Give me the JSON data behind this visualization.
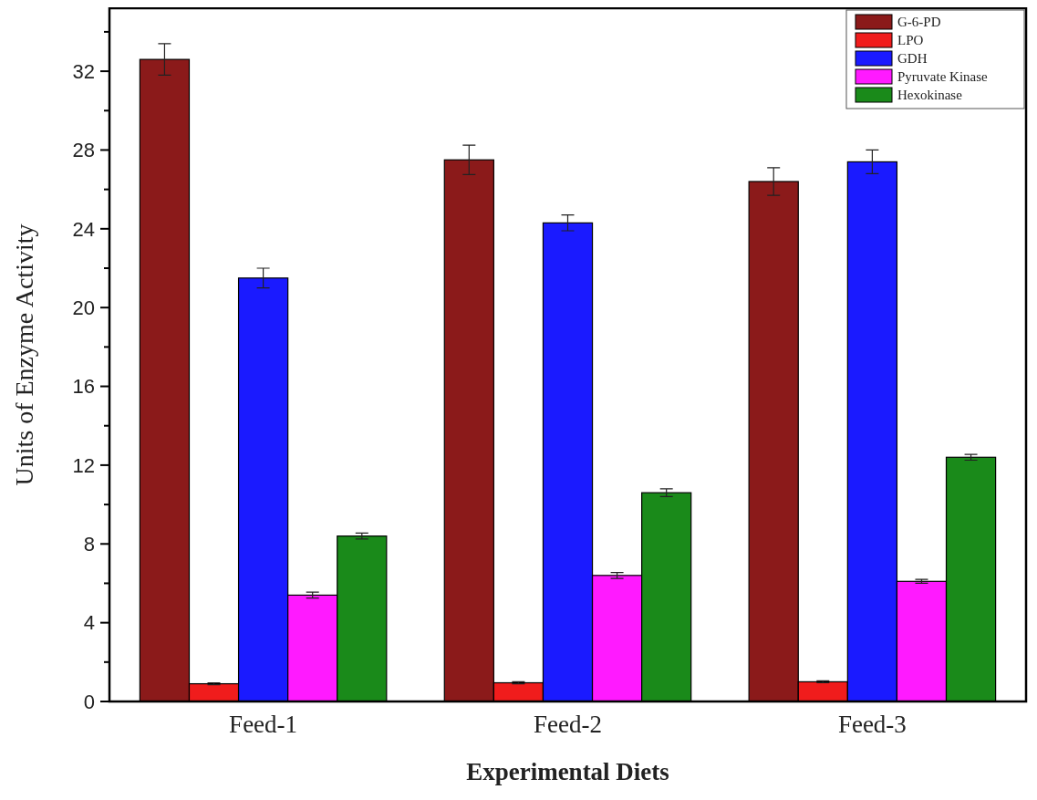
{
  "chart_data": {
    "type": "bar",
    "xlabel": "Experimental Diets",
    "ylabel": "Units of Enzyme Activity",
    "categories": [
      "Feed-1",
      "Feed-2",
      "Feed-3"
    ],
    "series": [
      {
        "name": "G-6-PD",
        "color": "#8b1a1a",
        "values": [
          32.6,
          27.5,
          26.4
        ],
        "errors": [
          0.8,
          0.75,
          0.7
        ]
      },
      {
        "name": "LPO",
        "color": "#f01c1c",
        "values": [
          0.9,
          0.95,
          1.0
        ],
        "errors": [
          0.05,
          0.05,
          0.05
        ]
      },
      {
        "name": "GDH",
        "color": "#1a1aff",
        "values": [
          21.5,
          24.3,
          27.4
        ],
        "errors": [
          0.5,
          0.4,
          0.6
        ]
      },
      {
        "name": "Pyruvate Kinase",
        "color": "#ff1aff",
        "values": [
          5.4,
          6.4,
          6.1
        ],
        "errors": [
          0.15,
          0.15,
          0.1
        ]
      },
      {
        "name": "Hexokinase",
        "color": "#1a8a1a",
        "values": [
          8.4,
          10.6,
          12.4
        ],
        "errors": [
          0.15,
          0.2,
          0.15
        ]
      }
    ],
    "ylim": [
      0,
      35.2
    ],
    "yticks": [
      0,
      {
        "value": 2,
        "label": null
      },
      4,
      {
        "value": 6,
        "label": null
      },
      8,
      {
        "value": 10,
        "label": null
      },
      12,
      {
        "value": 14,
        "label": null
      },
      16,
      {
        "value": 18,
        "label": null
      },
      20,
      {
        "value": 22,
        "label": null
      },
      24,
      {
        "value": 26,
        "label": null
      },
      28,
      {
        "value": 30,
        "label": null
      },
      32,
      {
        "value": 34,
        "label": null
      }
    ],
    "legend": "top right",
    "grid": false
  }
}
